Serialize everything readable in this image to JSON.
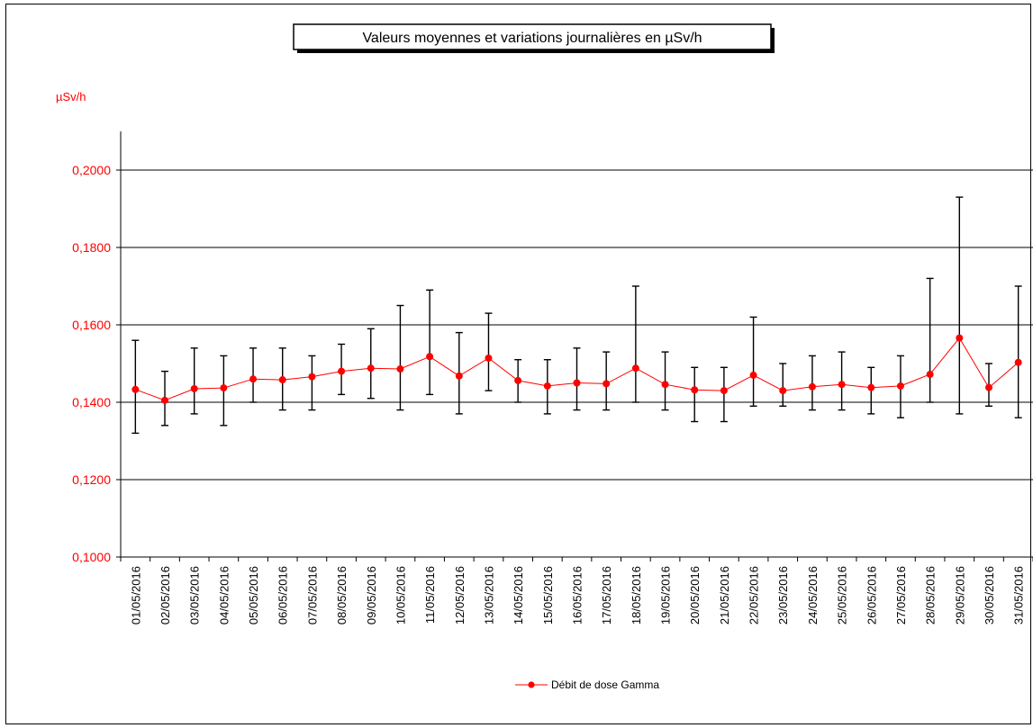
{
  "chart_data": {
    "type": "line",
    "title": "Valeurs moyennes et variations journalières en µSv/h",
    "unit_label": "µSv/h",
    "ylim": [
      0.1,
      0.21
    ],
    "yticks": [
      {
        "value": 0.1,
        "label": "0,1000"
      },
      {
        "value": 0.12,
        "label": "0,1200"
      },
      {
        "value": 0.14,
        "label": "0,1400"
      },
      {
        "value": 0.16,
        "label": "0,1600"
      },
      {
        "value": 0.18,
        "label": "0,1800"
      },
      {
        "value": 0.2,
        "label": "0,2000"
      }
    ],
    "grid": true,
    "legend_position": "bottom",
    "categories": [
      "01/05/2016",
      "02/05/2016",
      "03/05/2016",
      "04/05/2016",
      "05/05/2016",
      "06/05/2016",
      "07/05/2016",
      "08/05/2016",
      "09/05/2016",
      "10/05/2016",
      "11/05/2016",
      "12/05/2016",
      "13/05/2016",
      "14/05/2016",
      "15/05/2016",
      "16/05/2016",
      "17/05/2016",
      "18/05/2016",
      "19/05/2016",
      "20/05/2016",
      "21/05/2016",
      "22/05/2016",
      "23/05/2016",
      "24/05/2016",
      "25/05/2016",
      "26/05/2016",
      "27/05/2016",
      "28/05/2016",
      "29/05/2016",
      "30/05/2016",
      "31/05/2016"
    ],
    "series": [
      {
        "name": "Débit de dose Gamma",
        "color": "#ff0000",
        "values": [
          0.1433,
          0.1405,
          0.1435,
          0.1437,
          0.146,
          0.1458,
          0.1466,
          0.148,
          0.1488,
          0.1486,
          0.1518,
          0.1468,
          0.1514,
          0.1456,
          0.1442,
          0.145,
          0.1448,
          0.1488,
          0.1446,
          0.1432,
          0.143,
          0.147,
          0.143,
          0.144,
          0.1446,
          0.1438,
          0.1442,
          0.1472,
          0.1566,
          0.1438,
          0.1503
        ],
        "min": [
          0.132,
          0.134,
          0.137,
          0.134,
          0.14,
          0.138,
          0.138,
          0.142,
          0.141,
          0.138,
          0.142,
          0.137,
          0.143,
          0.14,
          0.137,
          0.138,
          0.138,
          0.14,
          0.138,
          0.135,
          0.135,
          0.139,
          0.139,
          0.138,
          0.138,
          0.137,
          0.136,
          0.14,
          0.137,
          0.139,
          0.136
        ],
        "max": [
          0.156,
          0.148,
          0.154,
          0.152,
          0.154,
          0.154,
          0.152,
          0.155,
          0.159,
          0.165,
          0.169,
          0.158,
          0.163,
          0.151,
          0.151,
          0.154,
          0.153,
          0.17,
          0.153,
          0.149,
          0.149,
          0.162,
          0.15,
          0.152,
          0.153,
          0.149,
          0.152,
          0.172,
          0.193,
          0.15,
          0.17
        ]
      }
    ]
  }
}
